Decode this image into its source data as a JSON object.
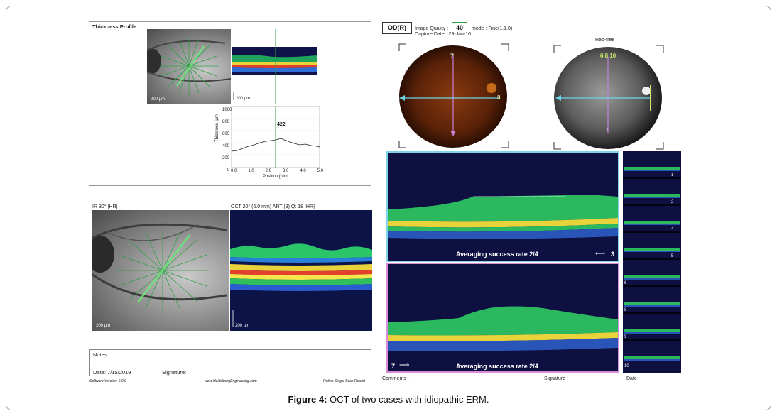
{
  "left_top": {
    "title": "Thickness Profile",
    "ir_scale": "200 µm",
    "oct_scale": "200 µm",
    "plot": {
      "y_ticks": [
        "1000",
        "800",
        "600",
        "400",
        "200",
        "0"
      ],
      "x_ticks": [
        "0.0",
        "1.0",
        "2.0",
        "3.0",
        "4.0",
        "5.0"
      ],
      "ylabel": "Thickness [µm]",
      "xlabel": "Position [mm]",
      "peak_label": "422"
    }
  },
  "left_bottom": {
    "ir_title": "IR 30° [HR]",
    "oct_title": "OCT 20° (6.0 mm) ART (9) Q: 18 [HR]",
    "ir_scale": "200 µm",
    "oct_scale": "200 µm",
    "notes_label": "Notes:",
    "date_text": "Date: 7/15/2019",
    "signature_label": "Signature:",
    "footer_left": "Software Version: 6.0.9",
    "footer_mid": "www.HeidelbergEngineering.com",
    "footer_right": "Retina Single Scan Report"
  },
  "right": {
    "eye": "OD(R)",
    "quality_label": "Image Quality :",
    "quality_value": "40",
    "mode": "mode : Fine(1.1.0)",
    "capture": "Capture Date : 29-Jan-10",
    "redfree_label": "Red-free",
    "color_marker_top": "7",
    "color_marker_right": "3",
    "redfree_marker_top": "6 8 10",
    "redfree_marker_bottom": "1",
    "banner1": "Averaging success rate 2/4",
    "arrow1_num": "3",
    "banner2": "Averaging success rate 2/4",
    "arrow2_num": "7",
    "thumb_labels": [
      "1",
      "2",
      "4",
      "5",
      "6",
      "8",
      "9",
      "10"
    ],
    "comments_label": "Comments :",
    "signature_label": "Signature :",
    "date_label": "Date :"
  },
  "figure_caption": {
    "bold": "Figure 4:",
    "text": " OCT of two cases with idiopathic ERM."
  },
  "colors": {
    "cyan_frame": "#7fd3e6",
    "magenta_frame": "#d98ad9",
    "scan_green": "#2ea043",
    "oct_bg": "#0d1040"
  }
}
